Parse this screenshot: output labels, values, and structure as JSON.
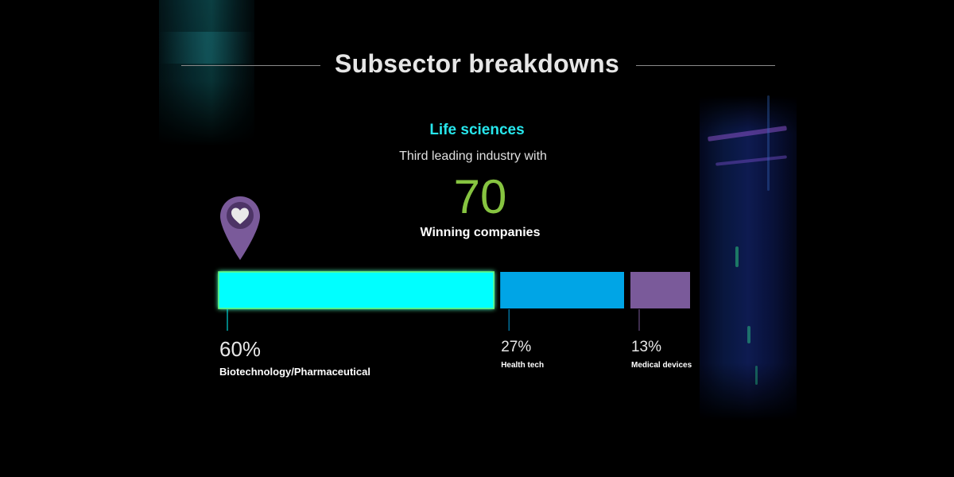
{
  "header": {
    "title": "Subsector breakdowns"
  },
  "section": {
    "title": "Life sciences",
    "subtitle": "Third leading industry with",
    "big_number": "70",
    "big_number_label": "Winning companies",
    "icon": "location-pin-heart-icon"
  },
  "colors": {
    "accent_cyan": "#00ffff",
    "health_blue": "#00a5e6",
    "devices_purple": "#7a5a9a",
    "big_number_green": "#86c440",
    "pin_purple": "#7a5a9a"
  },
  "chart_data": {
    "type": "bar",
    "orientation": "horizontal-stacked",
    "categories": [
      "Biotechnology/Pharmaceutical",
      "Health tech",
      "Medical devices"
    ],
    "values": [
      60,
      27,
      13
    ],
    "value_labels": [
      "60%",
      "27%",
      "13%"
    ],
    "colors": [
      "#00ffff",
      "#00a5e6",
      "#7a5a9a"
    ],
    "unit": "%"
  }
}
